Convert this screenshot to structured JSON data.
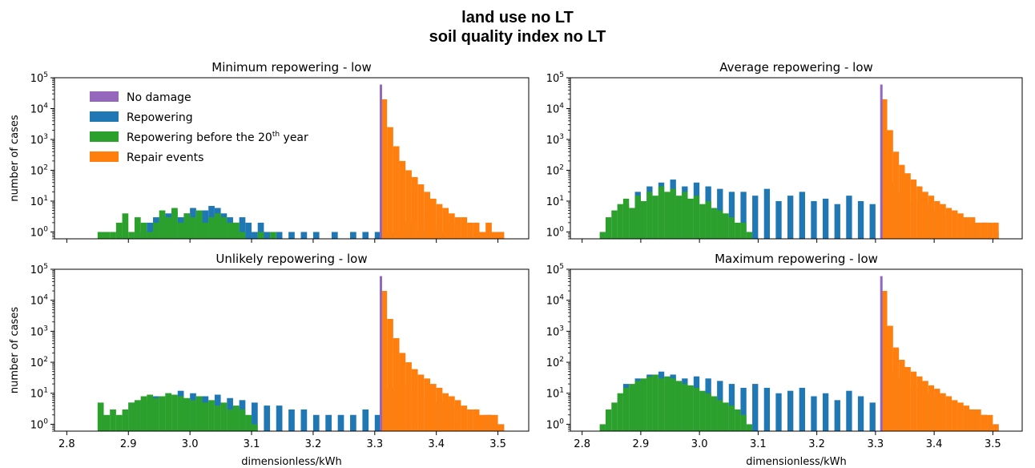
{
  "figure": {
    "title_line1": "land use no LT",
    "title_line2": "soil quality index no LT"
  },
  "legend": {
    "position": "top-left of first panel",
    "entries": [
      {
        "key": "no_damage",
        "label": "No damage",
        "color": "#9467bd"
      },
      {
        "key": "repowering",
        "label": "Repowering",
        "color": "#1f77b4"
      },
      {
        "key": "repowering_before_20",
        "label_prefix": "Repowering before the 20",
        "label_sup": "th",
        "label_suffix": " year",
        "color": "#2ca02c"
      },
      {
        "key": "repair",
        "label": "Repair events",
        "color": "#ff7f0e"
      }
    ]
  },
  "chart_data": [
    {
      "type": "bar",
      "title": "Minimum repowering - low",
      "ylabel": "number of cases",
      "xlabel": "",
      "xlim": [
        2.78,
        3.55
      ],
      "ylog": true,
      "ylim": [
        0.6,
        100000
      ],
      "xticks": [],
      "yticks": [
        1,
        10,
        100,
        1000,
        10000,
        100000
      ],
      "series": [
        {
          "name": "Repowering",
          "color": "#1f77b4",
          "x": [
            2.925,
            2.935,
            2.945,
            2.955,
            2.965,
            2.975,
            2.985,
            2.995,
            3.005,
            3.015,
            3.025,
            3.035,
            3.045,
            3.055,
            3.065,
            3.075,
            3.085,
            3.095,
            3.105,
            3.115,
            3.125,
            3.145,
            3.165,
            3.185,
            3.205,
            3.235,
            3.265,
            3.285,
            3.305,
            3.325,
            3.335,
            3.345,
            3.355,
            3.365,
            3.375,
            3.385,
            3.395,
            3.405,
            3.415,
            3.425,
            3.445,
            3.465,
            3.485,
            3.505
          ],
          "y": [
            1,
            2,
            3,
            3,
            4,
            5,
            3,
            4,
            6,
            3,
            5,
            7,
            6,
            4,
            3,
            2,
            3,
            2,
            1,
            2,
            1,
            1,
            1,
            1,
            1,
            1,
            1,
            1,
            1,
            1,
            1,
            1,
            2,
            2,
            1,
            3,
            2,
            1,
            1,
            2,
            2,
            1,
            1,
            1
          ]
        },
        {
          "name": "Repowering before the 20th year",
          "color": "#2ca02c",
          "x": [
            2.855,
            2.865,
            2.875,
            2.885,
            2.895,
            2.905,
            2.915,
            2.925,
            2.935,
            2.945,
            2.955,
            2.965,
            2.975,
            2.985,
            2.995,
            3.005,
            3.015,
            3.025,
            3.035,
            3.045,
            3.055,
            3.065,
            3.075,
            3.085,
            3.115,
            3.135
          ],
          "y": [
            1,
            1,
            1,
            2,
            4,
            1,
            3,
            2,
            1,
            2,
            5,
            3,
            6,
            2,
            4,
            3,
            5,
            2,
            3,
            4,
            3,
            2,
            2,
            1,
            1,
            1
          ]
        },
        {
          "name": "Repair events",
          "color": "#ff7f0e",
          "x": [
            3.315,
            3.325,
            3.335,
            3.345,
            3.355,
            3.365,
            3.375,
            3.385,
            3.395,
            3.405,
            3.415,
            3.425,
            3.435,
            3.445,
            3.455,
            3.465,
            3.475,
            3.485,
            3.495,
            3.505
          ],
          "y": [
            20000,
            2500,
            600,
            200,
            100,
            60,
            35,
            20,
            12,
            8,
            6,
            4,
            3,
            3,
            2,
            2,
            1,
            2,
            1,
            1
          ]
        },
        {
          "name": "No damage",
          "color": "#9467bd",
          "x": [
            3.31
          ],
          "y": [
            60000
          ]
        }
      ]
    },
    {
      "type": "bar",
      "title": "Average repowering - low",
      "ylabel": "",
      "xlabel": "",
      "xlim": [
        2.78,
        3.55
      ],
      "ylog": true,
      "ylim": [
        0.6,
        100000
      ],
      "xticks": [],
      "yticks": [
        1,
        10,
        100,
        1000,
        10000,
        100000
      ],
      "series": [
        {
          "name": "Repowering",
          "color": "#1f77b4",
          "x": [
            2.875,
            2.895,
            2.915,
            2.935,
            2.955,
            2.975,
            2.995,
            3.015,
            3.035,
            3.055,
            3.075,
            3.095,
            3.115,
            3.135,
            3.155,
            3.175,
            3.195,
            3.215,
            3.235,
            3.255,
            3.275,
            3.295,
            3.325,
            3.345,
            3.365,
            3.385,
            3.405,
            3.425,
            3.445,
            3.465,
            3.485,
            3.505
          ],
          "y": [
            8,
            20,
            30,
            40,
            50,
            30,
            40,
            30,
            25,
            20,
            20,
            15,
            25,
            10,
            15,
            20,
            10,
            12,
            8,
            15,
            10,
            8,
            40,
            20,
            10,
            8,
            5,
            4,
            3,
            2,
            2,
            1
          ]
        },
        {
          "name": "Repowering before the 20th year",
          "color": "#2ca02c",
          "x": [
            2.835,
            2.845,
            2.855,
            2.865,
            2.875,
            2.885,
            2.895,
            2.905,
            2.915,
            2.925,
            2.935,
            2.945,
            2.955,
            2.965,
            2.975,
            2.985,
            2.995,
            3.005,
            3.015,
            3.025,
            3.035,
            3.045,
            3.055,
            3.065,
            3.075,
            3.085
          ],
          "y": [
            1,
            3,
            5,
            8,
            12,
            6,
            15,
            10,
            20,
            15,
            30,
            20,
            25,
            15,
            20,
            12,
            15,
            8,
            10,
            6,
            5,
            4,
            3,
            2,
            2,
            1
          ]
        },
        {
          "name": "Repair events",
          "color": "#ff7f0e",
          "x": [
            3.315,
            3.325,
            3.335,
            3.345,
            3.355,
            3.365,
            3.375,
            3.385,
            3.395,
            3.405,
            3.415,
            3.425,
            3.435,
            3.445,
            3.455,
            3.465,
            3.475,
            3.485,
            3.495,
            3.505
          ],
          "y": [
            20000,
            2000,
            400,
            150,
            80,
            50,
            30,
            20,
            15,
            10,
            8,
            6,
            5,
            4,
            3,
            3,
            2,
            2,
            2,
            2
          ]
        },
        {
          "name": "No damage",
          "color": "#9467bd",
          "x": [
            3.31
          ],
          "y": [
            60000
          ]
        }
      ]
    },
    {
      "type": "bar",
      "title": "Unlikely repowering - low",
      "ylabel": "number of cases",
      "xlabel": "dimensionless/kWh",
      "xlim": [
        2.78,
        3.55
      ],
      "ylog": true,
      "ylim": [
        0.6,
        100000
      ],
      "xticks": [
        2.8,
        2.9,
        3.0,
        3.1,
        3.2,
        3.3,
        3.4,
        3.5
      ],
      "xtick_labels": [
        "2.8",
        "2.9",
        "3.0",
        "3.1",
        "3.2",
        "3.3",
        "3.4",
        "3.5"
      ],
      "yticks": [
        1,
        10,
        100,
        1000,
        10000,
        100000
      ],
      "series": [
        {
          "name": "Repowering",
          "color": "#1f77b4",
          "x": [
            2.905,
            2.925,
            2.945,
            2.965,
            2.985,
            3.005,
            3.025,
            3.045,
            3.065,
            3.085,
            3.105,
            3.125,
            3.145,
            3.165,
            3.185,
            3.205,
            3.225,
            3.245,
            3.265,
            3.285,
            3.305,
            3.325,
            3.345,
            3.365,
            3.385,
            3.405,
            3.425,
            3.445,
            3.465,
            3.485,
            3.505
          ],
          "y": [
            5,
            6,
            8,
            10,
            12,
            10,
            8,
            9,
            7,
            6,
            5,
            4,
            4,
            3,
            3,
            2,
            2,
            2,
            2,
            3,
            2,
            15,
            20,
            10,
            8,
            5,
            4,
            3,
            3,
            2,
            1
          ]
        },
        {
          "name": "Repowering before the 20th year",
          "color": "#2ca02c",
          "x": [
            2.855,
            2.865,
            2.875,
            2.885,
            2.895,
            2.905,
            2.915,
            2.925,
            2.935,
            2.945,
            2.955,
            2.965,
            2.975,
            2.985,
            2.995,
            3.005,
            3.015,
            3.025,
            3.035,
            3.045,
            3.055,
            3.065,
            3.075,
            3.085,
            3.095,
            3.105
          ],
          "y": [
            5,
            2,
            3,
            2,
            3,
            5,
            6,
            8,
            9,
            7,
            8,
            10,
            9,
            8,
            7,
            6,
            8,
            5,
            6,
            4,
            5,
            3,
            4,
            3,
            2,
            1
          ]
        },
        {
          "name": "Repair events",
          "color": "#ff7f0e",
          "x": [
            3.315,
            3.325,
            3.335,
            3.345,
            3.355,
            3.365,
            3.375,
            3.385,
            3.395,
            3.405,
            3.415,
            3.425,
            3.435,
            3.445,
            3.455,
            3.465,
            3.475,
            3.485,
            3.495,
            3.505
          ],
          "y": [
            20000,
            2500,
            600,
            200,
            100,
            60,
            40,
            30,
            20,
            15,
            10,
            8,
            6,
            4,
            3,
            3,
            2,
            2,
            2,
            1
          ]
        },
        {
          "name": "No damage",
          "color": "#9467bd",
          "x": [
            3.31
          ],
          "y": [
            60000
          ]
        }
      ]
    },
    {
      "type": "bar",
      "title": "Maximum repowering - low",
      "ylabel": "",
      "xlabel": "dimensionless/kWh",
      "xlim": [
        2.78,
        3.55
      ],
      "ylog": true,
      "ylim": [
        0.6,
        100000
      ],
      "xticks": [
        2.8,
        2.9,
        3.0,
        3.1,
        3.2,
        3.3,
        3.4,
        3.5
      ],
      "xtick_labels": [
        "2.8",
        "2.9",
        "3.0",
        "3.1",
        "3.2",
        "3.3",
        "3.4",
        "3.5"
      ],
      "yticks": [
        1,
        10,
        100,
        1000,
        10000,
        100000
      ],
      "series": [
        {
          "name": "Repowering",
          "color": "#1f77b4",
          "x": [
            2.875,
            2.895,
            2.915,
            2.935,
            2.955,
            2.975,
            2.995,
            3.015,
            3.035,
            3.055,
            3.075,
            3.095,
            3.115,
            3.135,
            3.155,
            3.175,
            3.195,
            3.215,
            3.235,
            3.255,
            3.275,
            3.295,
            3.325,
            3.345,
            3.365,
            3.385,
            3.405,
            3.425,
            3.445,
            3.465,
            3.485,
            3.505
          ],
          "y": [
            20,
            30,
            40,
            50,
            40,
            30,
            35,
            30,
            25,
            20,
            15,
            20,
            15,
            10,
            12,
            15,
            8,
            10,
            6,
            12,
            8,
            5,
            50,
            30,
            15,
            10,
            8,
            5,
            4,
            3,
            2,
            1
          ]
        },
        {
          "name": "Repowering before the 20th year",
          "color": "#2ca02c",
          "x": [
            2.835,
            2.845,
            2.855,
            2.865,
            2.875,
            2.885,
            2.895,
            2.905,
            2.915,
            2.925,
            2.935,
            2.945,
            2.955,
            2.965,
            2.975,
            2.985,
            2.995,
            3.005,
            3.015,
            3.025,
            3.035,
            3.045,
            3.055,
            3.065,
            3.075,
            3.085
          ],
          "y": [
            1,
            3,
            5,
            10,
            15,
            20,
            25,
            30,
            35,
            40,
            30,
            35,
            30,
            25,
            20,
            18,
            15,
            12,
            10,
            8,
            6,
            5,
            4,
            3,
            2,
            1
          ]
        },
        {
          "name": "Repair events",
          "color": "#ff7f0e",
          "x": [
            3.315,
            3.325,
            3.335,
            3.345,
            3.355,
            3.365,
            3.375,
            3.385,
            3.395,
            3.405,
            3.415,
            3.425,
            3.435,
            3.445,
            3.455,
            3.465,
            3.475,
            3.485,
            3.495,
            3.505
          ],
          "y": [
            20000,
            1500,
            300,
            120,
            70,
            50,
            35,
            25,
            18,
            14,
            10,
            8,
            6,
            5,
            4,
            3,
            3,
            2,
            2,
            1
          ]
        },
        {
          "name": "No damage",
          "color": "#9467bd",
          "x": [
            3.31
          ],
          "y": [
            60000
          ]
        }
      ]
    }
  ]
}
